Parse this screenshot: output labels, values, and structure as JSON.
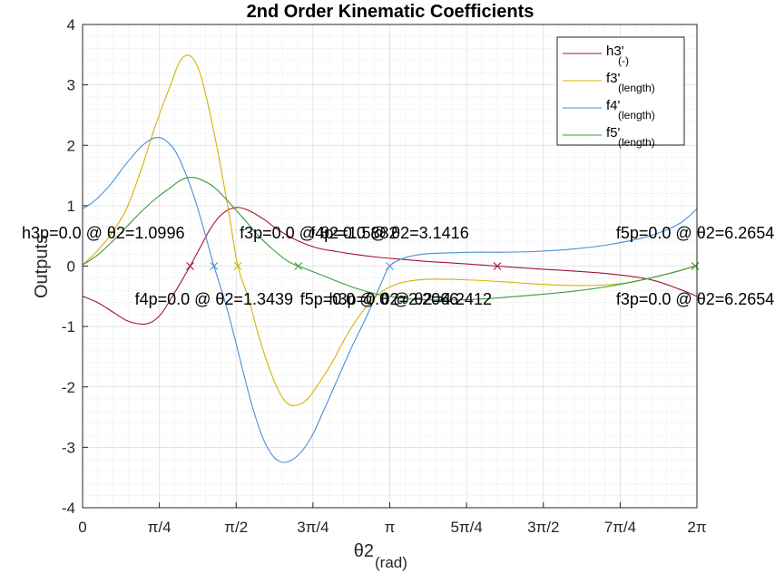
{
  "chart_data": {
    "type": "line",
    "title": "2nd Order Kinematic Coefficients",
    "xlabel": "θ2",
    "xlabel_sub": "(rad)",
    "ylabel": "Outputs",
    "xlim": [
      0,
      6.2832
    ],
    "ylim": [
      -4,
      4
    ],
    "grid": true,
    "minor_grid": true,
    "legend_position": "top-right",
    "x_ticks": [
      {
        "value": 0,
        "label": "0"
      },
      {
        "value": 0.7854,
        "label": "π/4"
      },
      {
        "value": 1.5708,
        "label": "π/2"
      },
      {
        "value": 2.3562,
        "label": "3π/4"
      },
      {
        "value": 3.1416,
        "label": "π"
      },
      {
        "value": 3.927,
        "label": "5π/4"
      },
      {
        "value": 4.7124,
        "label": "3π/2"
      },
      {
        "value": 5.4978,
        "label": "7π/4"
      },
      {
        "value": 6.2832,
        "label": "2π"
      }
    ],
    "y_ticks": [
      {
        "value": 4,
        "label": "4"
      },
      {
        "value": 3,
        "label": "3"
      },
      {
        "value": 2,
        "label": "2"
      },
      {
        "value": 1,
        "label": "1"
      },
      {
        "value": 0,
        "label": "0"
      },
      {
        "value": -1,
        "label": "-1"
      },
      {
        "value": -2,
        "label": "-2"
      },
      {
        "value": -3,
        "label": "-3"
      },
      {
        "value": -4,
        "label": "-4"
      }
    ],
    "series": [
      {
        "name": "h3'",
        "name_sub": "(-)",
        "color": "#a2142f",
        "x": [
          0,
          0.15,
          0.3,
          0.45,
          0.6,
          0.7,
          0.8,
          0.9,
          1.0,
          1.0996,
          1.2,
          1.3,
          1.4,
          1.5,
          1.6,
          1.7,
          1.85,
          2.0,
          2.2,
          2.4,
          2.6,
          2.8,
          3.0,
          3.2,
          3.5,
          3.8,
          4.2412,
          4.6,
          5.0,
          5.4,
          5.8,
          6.1,
          6.2832
        ],
        "y": [
          -0.5,
          -0.6,
          -0.75,
          -0.9,
          -0.96,
          -0.93,
          -0.8,
          -0.55,
          -0.28,
          0.0,
          0.3,
          0.6,
          0.82,
          0.94,
          0.97,
          0.92,
          0.78,
          0.6,
          0.42,
          0.3,
          0.24,
          0.19,
          0.15,
          0.12,
          0.08,
          0.05,
          0.0,
          -0.04,
          -0.08,
          -0.13,
          -0.22,
          -0.38,
          -0.5
        ]
      },
      {
        "name": "f3'",
        "name_sub": "(length)",
        "color": "#d4b400",
        "x": [
          0,
          0.15,
          0.3,
          0.45,
          0.6,
          0.75,
          0.9,
          1.0,
          1.1,
          1.2,
          1.3,
          1.4,
          1.5,
          1.5882,
          1.7,
          1.8,
          1.9,
          2.0,
          2.1,
          2.2,
          2.3,
          2.4,
          2.55,
          2.7,
          2.85,
          3.0,
          3.15,
          3.3,
          3.5,
          3.8,
          4.1,
          4.4,
          4.8,
          5.2,
          5.6,
          6.0,
          6.2654,
          6.2832
        ],
        "y": [
          0.02,
          0.25,
          0.55,
          0.95,
          1.6,
          2.35,
          3.0,
          3.4,
          3.48,
          3.2,
          2.55,
          1.75,
          0.85,
          0.0,
          -0.55,
          -1.15,
          -1.65,
          -2.05,
          -2.28,
          -2.3,
          -2.2,
          -1.98,
          -1.6,
          -1.15,
          -0.78,
          -0.5,
          -0.34,
          -0.26,
          -0.22,
          -0.22,
          -0.24,
          -0.27,
          -0.31,
          -0.32,
          -0.27,
          -0.12,
          0.0,
          0.0
        ]
      },
      {
        "name": "f4'",
        "name_sub": "(length)",
        "color": "#4a8ed6",
        "x": [
          0,
          0.1,
          0.2,
          0.3,
          0.4,
          0.5,
          0.6,
          0.7,
          0.78,
          0.85,
          0.95,
          1.05,
          1.15,
          1.25,
          1.3439,
          1.45,
          1.55,
          1.65,
          1.75,
          1.85,
          1.95,
          2.05,
          2.15,
          2.25,
          2.35,
          2.45,
          2.6,
          2.75,
          2.9,
          3.05,
          3.1416,
          3.3,
          3.5,
          3.75,
          4.0,
          4.3,
          4.6,
          5.0,
          5.4,
          5.8,
          6.1,
          6.2832
        ],
        "y": [
          0.95,
          1.05,
          1.2,
          1.38,
          1.6,
          1.8,
          1.98,
          2.1,
          2.13,
          2.08,
          1.9,
          1.55,
          1.1,
          0.55,
          0.0,
          -0.55,
          -1.15,
          -1.8,
          -2.4,
          -2.87,
          -3.15,
          -3.25,
          -3.2,
          -3.05,
          -2.8,
          -2.45,
          -1.9,
          -1.35,
          -0.85,
          -0.3,
          0.0,
          0.14,
          0.2,
          0.22,
          0.23,
          0.23,
          0.24,
          0.28,
          0.36,
          0.5,
          0.7,
          0.95
        ]
      },
      {
        "name": "f5'",
        "name_sub": "(length)",
        "color": "#3a9c3a",
        "x": [
          0,
          0.15,
          0.3,
          0.45,
          0.6,
          0.75,
          0.9,
          1.0,
          1.1,
          1.2,
          1.35,
          1.5,
          1.65,
          1.8,
          1.95,
          2.1,
          2.2066,
          2.4,
          2.6,
          2.8,
          3.0,
          3.2,
          3.4,
          3.6,
          3.8,
          4.0,
          4.3,
          4.6,
          5.0,
          5.4,
          5.8,
          6.1,
          6.2654,
          6.2832
        ],
        "y": [
          0.02,
          0.18,
          0.4,
          0.65,
          0.9,
          1.12,
          1.3,
          1.42,
          1.47,
          1.44,
          1.3,
          1.05,
          0.78,
          0.5,
          0.27,
          0.08,
          0.0,
          -0.12,
          -0.25,
          -0.37,
          -0.46,
          -0.52,
          -0.55,
          -0.56,
          -0.56,
          -0.55,
          -0.52,
          -0.48,
          -0.42,
          -0.33,
          -0.2,
          -0.08,
          0.0,
          0.0
        ]
      }
    ],
    "markers": [
      {
        "x": 1.0996,
        "y": 0,
        "color": "#a2142f"
      },
      {
        "x": 1.3439,
        "y": 0,
        "color": "#4a8ed6"
      },
      {
        "x": 1.5882,
        "y": 0,
        "color": "#d4b400"
      },
      {
        "x": 2.2066,
        "y": 0,
        "color": "#3a9c3a"
      },
      {
        "x": 3.1416,
        "y": 0,
        "color": "#4a8ed6"
      },
      {
        "x": 4.2412,
        "y": 0,
        "color": "#a2142f"
      },
      {
        "x": 6.2654,
        "y": 0,
        "color": "#d4b400"
      },
      {
        "x": 6.2654,
        "y": 0,
        "color": "#3a9c3a"
      }
    ],
    "annotations": [
      {
        "text": "h3p=0.0 @ θ2=1.0996",
        "x": 1.0996,
        "y": 0.55,
        "anchor": "end"
      },
      {
        "text": "f3p=0.0 @ θ2=1.5882",
        "x": 1.5882,
        "y": 0.55,
        "anchor": "start"
      },
      {
        "text": "f4p=0.0 @ θ2=3.1416",
        "x": 3.1416,
        "y": 0.55,
        "anchor": "middle"
      },
      {
        "text": "f5p=0.0 @ θ2=6.2654",
        "x": 6.2654,
        "y": 0.55,
        "anchor": "middle"
      },
      {
        "text": "f4p=0.0 @ θ2=1.3439",
        "x": 1.3439,
        "y": -0.55,
        "anchor": "middle"
      },
      {
        "text": "f5p=0.0 @ θ2=2.2066",
        "x": 2.2066,
        "y": -0.55,
        "anchor": "start"
      },
      {
        "text": "h3p=0.0 @ θ2=4.2412",
        "x": 4.2412,
        "y": -0.55,
        "anchor": "end"
      },
      {
        "text": "f3p=0.0 @ θ2=6.2654",
        "x": 6.2654,
        "y": -0.55,
        "anchor": "middle"
      }
    ]
  }
}
